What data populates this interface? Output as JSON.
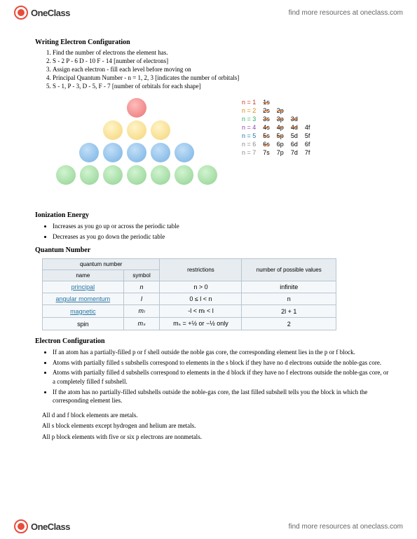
{
  "brand": {
    "logo_text": "OneClass",
    "find_link": "find more resources at oneclass.com"
  },
  "section1": {
    "title": "Writing Electron Configuration",
    "steps": [
      "Find the number of electrons the element has.",
      "S - 2 P - 6 D - 10 F - 14 [number of electrons]",
      "Assign each electron - fill each level before moving on",
      "Principal Quantum Number - n = 1, 2, 3 [indicates the number of orbitals]",
      "S - 1, P - 3, D - 5, F - 7 [number of orbitals for each shape]"
    ]
  },
  "levels": {
    "rows": [
      {
        "n": "n = 1",
        "cells": [
          "1s"
        ],
        "cls": "n1"
      },
      {
        "n": "n = 2",
        "cells": [
          "2s",
          "2p"
        ],
        "cls": "n2"
      },
      {
        "n": "n = 3",
        "cells": [
          "3s",
          "3p",
          "3d"
        ],
        "cls": "n3"
      },
      {
        "n": "n = 4",
        "cells": [
          "4s",
          "4p",
          "4d",
          "4f"
        ],
        "cls": "n4"
      },
      {
        "n": "n = 5",
        "cells": [
          "5s",
          "5p",
          "5d",
          "5f"
        ],
        "cls": "n5"
      },
      {
        "n": "n = 6",
        "cells": [
          "6s",
          "6p",
          "6d",
          "6f"
        ],
        "cls": "n6"
      },
      {
        "n": "n = 7",
        "cells": [
          "7s",
          "7p",
          "7d",
          "7f"
        ],
        "cls": "n7"
      }
    ]
  },
  "section2": {
    "title": "Ionization Energy",
    "points": [
      "Increases as you go up or across the periodic table",
      "Decreases as you go down the periodic table"
    ]
  },
  "section3": {
    "title": "Quantum Number",
    "headers": {
      "qn": "quantum number",
      "name": "name",
      "symbol": "symbol",
      "restrictions": "restrictions",
      "npv": "number of possible values"
    },
    "rows": [
      {
        "name": "principal",
        "sym": "n",
        "rest": "n > 0",
        "npv": "infinite"
      },
      {
        "name": "angular momentum",
        "sym": "l",
        "rest": "0 ≤ l < n",
        "npv": "n"
      },
      {
        "name": "magnetic",
        "sym": "mₗ",
        "rest": "-l < mₗ < l",
        "npv": "2l + 1"
      },
      {
        "name": "spin",
        "sym": "mₛ",
        "rest": "mₛ = +½ or −½ only",
        "npv": "2"
      }
    ]
  },
  "section4": {
    "title": "Electron Configuration",
    "points": [
      "If an atom has a partially-filled p or f shell outside the noble gas core, the corresponding element lies in the p or f block.",
      "Atoms with partially filled s subshells correspond to elements in the s block if they have no d electrons outside the noble-gas core.",
      "Atoms with partially filled d subshells correspond to elements in the d block if they have no f electrons outside the noble-gas core, or a completely filled f subshell.",
      "If the atom has no partially-filled subshells outside the noble-gas core, the last filled subshell tells you the block in which the corresponding element lies."
    ],
    "notes": [
      "All d and f block elements are metals.",
      "All s block elements except hydrogen and helium are metals.",
      "All p block elements with five or six p electrons are nonmetals."
    ]
  }
}
